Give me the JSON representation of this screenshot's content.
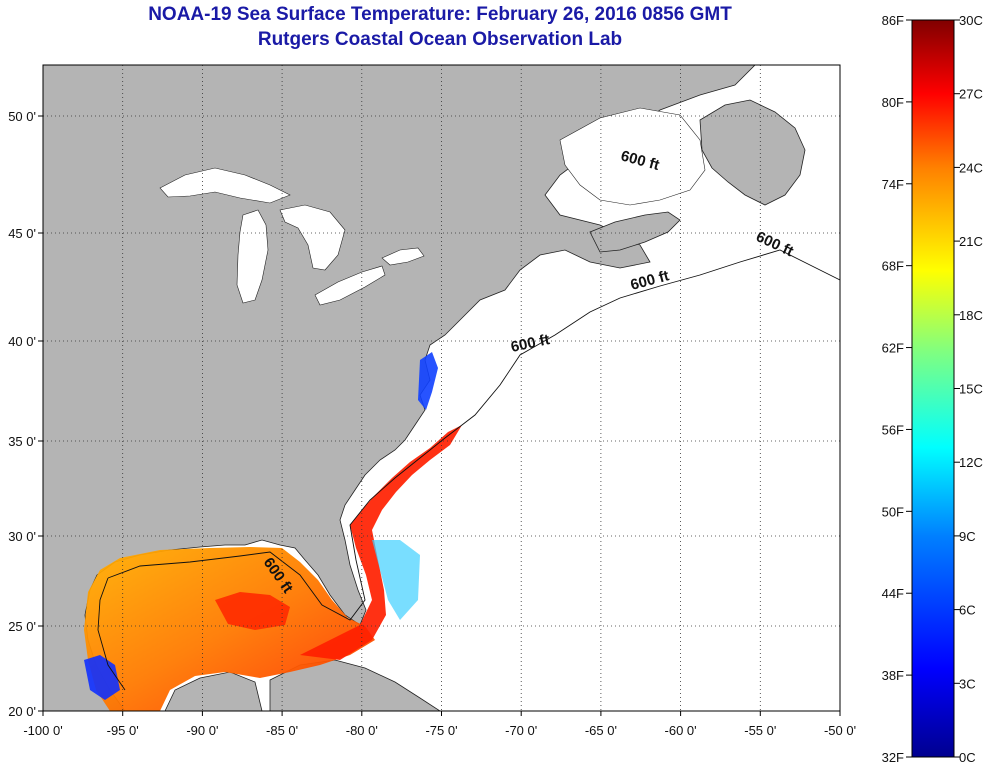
{
  "title": {
    "line1": "NOAA-19 Sea Surface Temperature:  February 26, 2016 0856 GMT",
    "line2": "Rutgers Coastal Ocean Observation Lab"
  },
  "map": {
    "lat_ticks": [
      "50 0'",
      "45 0'",
      "40 0'",
      "35 0'",
      "30 0'",
      "25 0'",
      "20 0'"
    ],
    "lon_ticks": [
      "-100 0'",
      "-95 0'",
      "-90 0'",
      "-85 0'",
      "-80 0'",
      "-75 0'",
      "-70 0'",
      "-65 0'",
      "-60 0'",
      "-55 0'",
      "-50 0'"
    ],
    "contour_label": "600 ft",
    "colors": {
      "land": "#b4b4b4",
      "ocean": "#ffffff",
      "grid": "#333333"
    }
  },
  "colorbar": {
    "f_ticks": [
      "86F",
      "80F",
      "74F",
      "68F",
      "62F",
      "56F",
      "50F",
      "44F",
      "38F",
      "32F"
    ],
    "c_ticks": [
      "30C",
      "27C",
      "24C",
      "21C",
      "18C",
      "15C",
      "12C",
      "9C",
      "6C",
      "3C",
      "0C"
    ],
    "gradient": [
      "#00008f",
      "#0000ff",
      "#0080ff",
      "#00ffff",
      "#80ff80",
      "#ffff00",
      "#ff8000",
      "#ff0000",
      "#800000"
    ]
  }
}
